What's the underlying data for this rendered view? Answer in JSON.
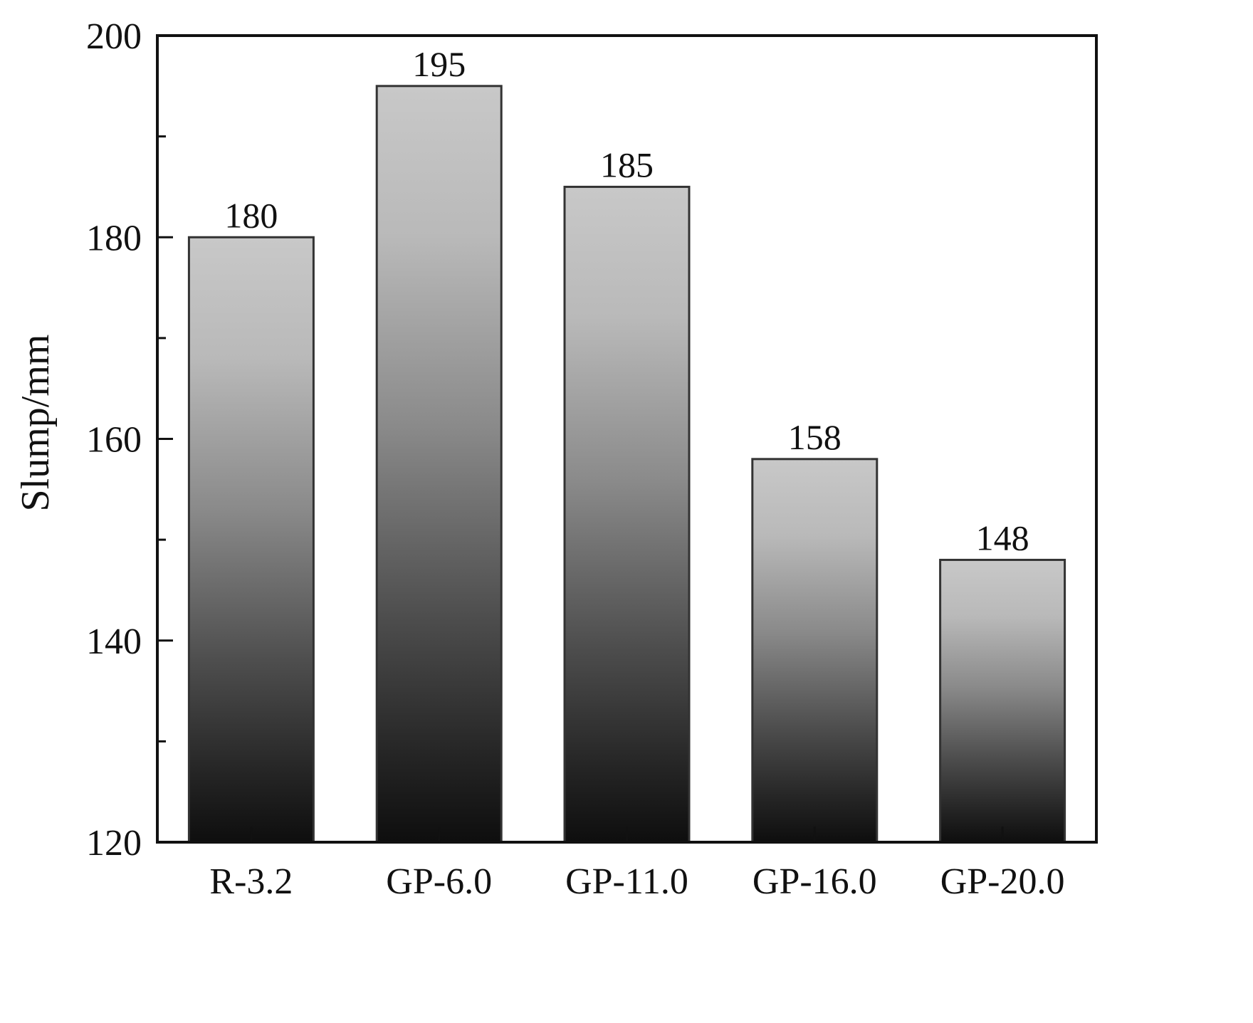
{
  "chart_data": {
    "type": "bar",
    "title": "",
    "xlabel": "",
    "ylabel": "Slump/mm",
    "categories": [
      "R-3.2",
      "GP-6.0",
      "GP-11.0",
      "GP-16.0",
      "GP-20.0"
    ],
    "values": [
      180,
      195,
      185,
      158,
      148
    ],
    "data_labels": [
      "180",
      "195",
      "185",
      "158",
      "148"
    ],
    "ylim": [
      120,
      200
    ],
    "yticks": [
      120,
      140,
      160,
      180,
      200
    ],
    "yticks_minor": [
      130,
      150,
      170,
      190
    ],
    "grid": false,
    "legend": null,
    "bar_fill": "vertical gradient light gray (#c6c6c6) at top to near-black (#111111) at bottom",
    "colors": {
      "bar_top": "#c8c8c8",
      "bar_bottom": "#0e0e0e",
      "bar_edge": "#333333",
      "axis": "#111111"
    }
  }
}
